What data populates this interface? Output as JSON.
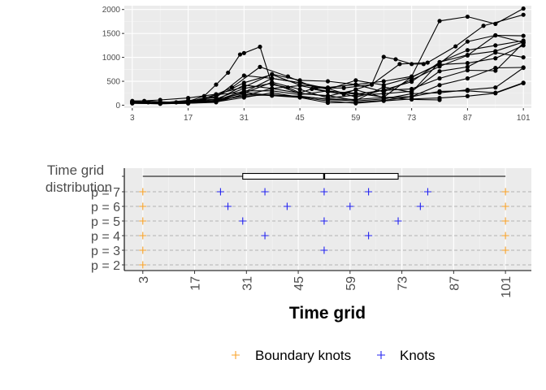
{
  "chart_data": [
    {
      "type": "line",
      "title": "",
      "xlabel": "",
      "ylabel": "",
      "x_ticks": [
        3,
        17,
        31,
        45,
        59,
        73,
        87,
        101
      ],
      "y_ticks": [
        0,
        500,
        1000,
        1500,
        2000
      ],
      "xlim": [
        1,
        103
      ],
      "ylim": [
        -60,
        2080
      ],
      "grid": true,
      "series": [
        {
          "x": [
            3,
            6,
            10,
            14,
            17,
            21,
            24,
            27,
            30,
            31,
            35,
            38,
            42,
            45,
            48,
            52,
            56,
            59,
            63,
            66,
            69,
            73,
            76
          ],
          "values": [
            90,
            90,
            70,
            60,
            80,
            190,
            430,
            680,
            1060,
            1090,
            1220,
            430,
            370,
            260,
            340,
            280,
            230,
            330,
            430,
            1010,
            960,
            860,
            860
          ]
        },
        {
          "x": [
            3,
            10,
            17,
            24,
            31,
            38,
            45,
            52,
            59,
            66,
            73,
            80,
            87,
            94,
            101
          ],
          "values": [
            80,
            110,
            150,
            230,
            380,
            650,
            520,
            500,
            430,
            500,
            600,
            1760,
            1850,
            1700,
            2020
          ]
        },
        {
          "x": [
            3,
            7,
            14,
            21,
            28,
            35,
            42,
            49,
            56,
            63,
            70,
            77,
            84,
            91,
            101
          ],
          "values": [
            70,
            60,
            60,
            110,
            370,
            800,
            600,
            360,
            360,
            430,
            860,
            890,
            1230,
            1660,
            1890
          ]
        },
        {
          "x": [
            3,
            10,
            17,
            24,
            31,
            38,
            45,
            52,
            59,
            66,
            73,
            80,
            87,
            94,
            101
          ],
          "values": [
            70,
            40,
            90,
            160,
            620,
            560,
            470,
            330,
            520,
            420,
            580,
            870,
            1330,
            1460,
            1450
          ]
        },
        {
          "x": [
            3,
            10,
            17,
            24,
            31,
            38,
            45,
            52,
            59,
            66,
            73,
            80,
            87,
            94,
            101
          ],
          "values": [
            60,
            60,
            70,
            180,
            470,
            640,
            420,
            370,
            430,
            280,
            530,
            810,
            1040,
            1460,
            1310
          ]
        },
        {
          "x": [
            3,
            10,
            17,
            24,
            31,
            38,
            45,
            52,
            59,
            66,
            73,
            80,
            87,
            94,
            101
          ],
          "values": [
            70,
            50,
            60,
            220,
            270,
            560,
            470,
            350,
            170,
            320,
            490,
            900,
            1150,
            1250,
            1350
          ]
        },
        {
          "x": [
            3,
            10,
            17,
            24,
            31,
            38,
            45,
            52,
            59,
            66,
            73,
            80,
            87,
            94,
            101
          ],
          "values": [
            70,
            50,
            60,
            130,
            350,
            460,
            240,
            200,
            100,
            380,
            270,
            900,
            1050,
            1130,
            1320
          ]
        },
        {
          "x": [
            3,
            10,
            17,
            24,
            31,
            38,
            45,
            52,
            59,
            66,
            73,
            80,
            87,
            94,
            101
          ],
          "values": [
            60,
            50,
            50,
            100,
            420,
            350,
            410,
            290,
            250,
            170,
            590,
            850,
            880,
            980,
            1250
          ]
        },
        {
          "x": [
            3,
            10,
            17,
            24,
            31,
            38,
            45,
            52,
            59,
            66,
            73,
            80,
            87,
            94,
            101
          ],
          "values": [
            60,
            50,
            100,
            120,
            250,
            480,
            330,
            150,
            210,
            240,
            290,
            710,
            800,
            1100,
            1000
          ]
        },
        {
          "x": [
            3,
            10,
            17,
            24,
            31,
            38,
            45,
            52,
            59,
            66,
            73,
            80,
            87,
            94,
            101
          ],
          "values": [
            60,
            40,
            70,
            100,
            300,
            300,
            220,
            300,
            230,
            310,
            340,
            560,
            730,
            720,
            1300
          ]
        },
        {
          "x": [
            3,
            10,
            17,
            24,
            31,
            38,
            45,
            52,
            59,
            66,
            73,
            80,
            87,
            94,
            101
          ],
          "values": [
            50,
            60,
            50,
            90,
            200,
            350,
            250,
            190,
            320,
            160,
            180,
            420,
            560,
            780,
            790
          ]
        },
        {
          "x": [
            3,
            10,
            17,
            24,
            31,
            38,
            45,
            52,
            59,
            66,
            73,
            80,
            87,
            94,
            101
          ],
          "values": [
            50,
            40,
            50,
            80,
            270,
            200,
            190,
            120,
            90,
            130,
            240,
            260,
            320,
            370,
            780
          ]
        },
        {
          "x": [
            3,
            10,
            17,
            24,
            31,
            38,
            45,
            52,
            59,
            66,
            73,
            80,
            87,
            94,
            101
          ],
          "values": [
            40,
            30,
            40,
            60,
            230,
            200,
            160,
            50,
            60,
            100,
            180,
            290,
            300,
            260,
            470
          ]
        },
        {
          "x": [
            3,
            10,
            17,
            24,
            31,
            38,
            45,
            52,
            59,
            66,
            73,
            80,
            87,
            94,
            101
          ],
          "values": [
            40,
            30,
            40,
            70,
            160,
            260,
            170,
            90,
            40,
            90,
            130,
            150,
            190,
            250,
            460
          ]
        },
        {
          "x": [
            3,
            10,
            17,
            24,
            31,
            38,
            45,
            52,
            59,
            66,
            73,
            80
          ],
          "values": [
            50,
            40,
            40,
            100,
            190,
            220,
            180,
            130,
            120,
            160,
            120,
            110
          ]
        }
      ]
    },
    {
      "type": "scatter",
      "xlabel": "Time grid",
      "ylabel_text": "Time grid\ndistribution",
      "x_ticks": [
        3,
        17,
        31,
        45,
        59,
        73,
        87,
        101
      ],
      "xlim": [
        -2,
        108
      ],
      "y_categories": [
        "p = 2",
        "p = 3",
        "p = 4",
        "p = 5",
        "p = 6",
        "p = 7"
      ],
      "boxplot": {
        "min": 3,
        "q1": 30,
        "median": 52,
        "q3": 72,
        "max": 101
      },
      "boundary_knots": {
        "color": "#F8A32A",
        "points": [
          {
            "p": 2,
            "x": 3
          },
          {
            "p": 3,
            "x": 3
          },
          {
            "p": 3,
            "x": 101
          },
          {
            "p": 4,
            "x": 3
          },
          {
            "p": 4,
            "x": 101
          },
          {
            "p": 5,
            "x": 3
          },
          {
            "p": 5,
            "x": 101
          },
          {
            "p": 6,
            "x": 3
          },
          {
            "p": 6,
            "x": 101
          },
          {
            "p": 7,
            "x": 3
          },
          {
            "p": 7,
            "x": 101
          }
        ]
      },
      "knots": {
        "color": "#2424F0",
        "points": [
          {
            "p": 3,
            "x": 52
          },
          {
            "p": 4,
            "x": 36
          },
          {
            "p": 4,
            "x": 64
          },
          {
            "p": 5,
            "x": 30
          },
          {
            "p": 5,
            "x": 52
          },
          {
            "p": 5,
            "x": 72
          },
          {
            "p": 6,
            "x": 26
          },
          {
            "p": 6,
            "x": 42
          },
          {
            "p": 6,
            "x": 59
          },
          {
            "p": 6,
            "x": 78
          },
          {
            "p": 7,
            "x": 24
          },
          {
            "p": 7,
            "x": 36
          },
          {
            "p": 7,
            "x": 52
          },
          {
            "p": 7,
            "x": 64
          },
          {
            "p": 7,
            "x": 80
          }
        ]
      }
    }
  ],
  "legend": {
    "items": [
      {
        "label": "Boundary knots",
        "color": "#F8A32A"
      },
      {
        "label": "Knots",
        "color": "#2424F0"
      }
    ]
  }
}
